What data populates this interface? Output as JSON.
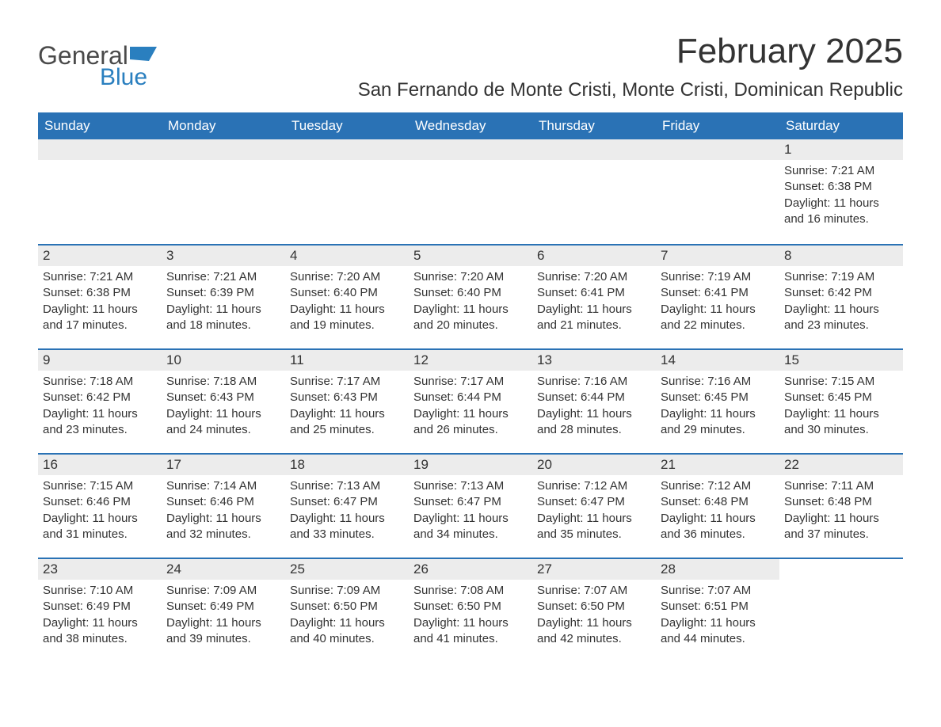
{
  "brand": {
    "general": "General",
    "blue": "Blue",
    "accent_color": "#2a7fbf"
  },
  "title": {
    "month": "February 2025",
    "location": "San Fernando de Monte Cristi, Monte Cristi, Dominican Republic"
  },
  "colors": {
    "header_bg": "#2a72b5",
    "header_text": "#ffffff",
    "daybar_bg": "#ececec",
    "body_text": "#333333",
    "divider": "#2a72b5",
    "page_bg": "#ffffff"
  },
  "typography": {
    "month_title_pt": 33,
    "location_pt": 18,
    "weekday_pt": 13,
    "daynum_pt": 13,
    "body_pt": 11
  },
  "layout": {
    "columns": 7,
    "rows": 5
  },
  "weekdays": [
    "Sunday",
    "Monday",
    "Tuesday",
    "Wednesday",
    "Thursday",
    "Friday",
    "Saturday"
  ],
  "weeks": [
    [
      {
        "blank": true
      },
      {
        "blank": true
      },
      {
        "blank": true
      },
      {
        "blank": true
      },
      {
        "blank": true
      },
      {
        "blank": true
      },
      {
        "n": "1",
        "sunrise": "Sunrise: 7:21 AM",
        "sunset": "Sunset: 6:38 PM",
        "daylight": "Daylight: 11 hours and 16 minutes."
      }
    ],
    [
      {
        "n": "2",
        "sunrise": "Sunrise: 7:21 AM",
        "sunset": "Sunset: 6:38 PM",
        "daylight": "Daylight: 11 hours and 17 minutes."
      },
      {
        "n": "3",
        "sunrise": "Sunrise: 7:21 AM",
        "sunset": "Sunset: 6:39 PM",
        "daylight": "Daylight: 11 hours and 18 minutes."
      },
      {
        "n": "4",
        "sunrise": "Sunrise: 7:20 AM",
        "sunset": "Sunset: 6:40 PM",
        "daylight": "Daylight: 11 hours and 19 minutes."
      },
      {
        "n": "5",
        "sunrise": "Sunrise: 7:20 AM",
        "sunset": "Sunset: 6:40 PM",
        "daylight": "Daylight: 11 hours and 20 minutes."
      },
      {
        "n": "6",
        "sunrise": "Sunrise: 7:20 AM",
        "sunset": "Sunset: 6:41 PM",
        "daylight": "Daylight: 11 hours and 21 minutes."
      },
      {
        "n": "7",
        "sunrise": "Sunrise: 7:19 AM",
        "sunset": "Sunset: 6:41 PM",
        "daylight": "Daylight: 11 hours and 22 minutes."
      },
      {
        "n": "8",
        "sunrise": "Sunrise: 7:19 AM",
        "sunset": "Sunset: 6:42 PM",
        "daylight": "Daylight: 11 hours and 23 minutes."
      }
    ],
    [
      {
        "n": "9",
        "sunrise": "Sunrise: 7:18 AM",
        "sunset": "Sunset: 6:42 PM",
        "daylight": "Daylight: 11 hours and 23 minutes."
      },
      {
        "n": "10",
        "sunrise": "Sunrise: 7:18 AM",
        "sunset": "Sunset: 6:43 PM",
        "daylight": "Daylight: 11 hours and 24 minutes."
      },
      {
        "n": "11",
        "sunrise": "Sunrise: 7:17 AM",
        "sunset": "Sunset: 6:43 PM",
        "daylight": "Daylight: 11 hours and 25 minutes."
      },
      {
        "n": "12",
        "sunrise": "Sunrise: 7:17 AM",
        "sunset": "Sunset: 6:44 PM",
        "daylight": "Daylight: 11 hours and 26 minutes."
      },
      {
        "n": "13",
        "sunrise": "Sunrise: 7:16 AM",
        "sunset": "Sunset: 6:44 PM",
        "daylight": "Daylight: 11 hours and 28 minutes."
      },
      {
        "n": "14",
        "sunrise": "Sunrise: 7:16 AM",
        "sunset": "Sunset: 6:45 PM",
        "daylight": "Daylight: 11 hours and 29 minutes."
      },
      {
        "n": "15",
        "sunrise": "Sunrise: 7:15 AM",
        "sunset": "Sunset: 6:45 PM",
        "daylight": "Daylight: 11 hours and 30 minutes."
      }
    ],
    [
      {
        "n": "16",
        "sunrise": "Sunrise: 7:15 AM",
        "sunset": "Sunset: 6:46 PM",
        "daylight": "Daylight: 11 hours and 31 minutes."
      },
      {
        "n": "17",
        "sunrise": "Sunrise: 7:14 AM",
        "sunset": "Sunset: 6:46 PM",
        "daylight": "Daylight: 11 hours and 32 minutes."
      },
      {
        "n": "18",
        "sunrise": "Sunrise: 7:13 AM",
        "sunset": "Sunset: 6:47 PM",
        "daylight": "Daylight: 11 hours and 33 minutes."
      },
      {
        "n": "19",
        "sunrise": "Sunrise: 7:13 AM",
        "sunset": "Sunset: 6:47 PM",
        "daylight": "Daylight: 11 hours and 34 minutes."
      },
      {
        "n": "20",
        "sunrise": "Sunrise: 7:12 AM",
        "sunset": "Sunset: 6:47 PM",
        "daylight": "Daylight: 11 hours and 35 minutes."
      },
      {
        "n": "21",
        "sunrise": "Sunrise: 7:12 AM",
        "sunset": "Sunset: 6:48 PM",
        "daylight": "Daylight: 11 hours and 36 minutes."
      },
      {
        "n": "22",
        "sunrise": "Sunrise: 7:11 AM",
        "sunset": "Sunset: 6:48 PM",
        "daylight": "Daylight: 11 hours and 37 minutes."
      }
    ],
    [
      {
        "n": "23",
        "sunrise": "Sunrise: 7:10 AM",
        "sunset": "Sunset: 6:49 PM",
        "daylight": "Daylight: 11 hours and 38 minutes."
      },
      {
        "n": "24",
        "sunrise": "Sunrise: 7:09 AM",
        "sunset": "Sunset: 6:49 PM",
        "daylight": "Daylight: 11 hours and 39 minutes."
      },
      {
        "n": "25",
        "sunrise": "Sunrise: 7:09 AM",
        "sunset": "Sunset: 6:50 PM",
        "daylight": "Daylight: 11 hours and 40 minutes."
      },
      {
        "n": "26",
        "sunrise": "Sunrise: 7:08 AM",
        "sunset": "Sunset: 6:50 PM",
        "daylight": "Daylight: 11 hours and 41 minutes."
      },
      {
        "n": "27",
        "sunrise": "Sunrise: 7:07 AM",
        "sunset": "Sunset: 6:50 PM",
        "daylight": "Daylight: 11 hours and 42 minutes."
      },
      {
        "n": "28",
        "sunrise": "Sunrise: 7:07 AM",
        "sunset": "Sunset: 6:51 PM",
        "daylight": "Daylight: 11 hours and 44 minutes."
      },
      {
        "blank": true,
        "noBar": true
      }
    ]
  ]
}
